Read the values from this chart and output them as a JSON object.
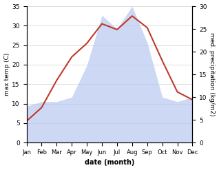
{
  "months": [
    "Jan",
    "Feb",
    "Mar",
    "Apr",
    "May",
    "Jun",
    "Jul",
    "Aug",
    "Sep",
    "Oct",
    "Nov",
    "Dec"
  ],
  "temperature": [
    5.5,
    9.0,
    16.0,
    22.0,
    25.5,
    30.5,
    29.0,
    32.5,
    29.5,
    21.0,
    13.0,
    11.0
  ],
  "precipitation": [
    8.0,
    9.0,
    9.0,
    10.0,
    17.0,
    28.0,
    25.0,
    30.0,
    22.0,
    10.0,
    9.0,
    10.0
  ],
  "temp_color": "#c0392b",
  "precip_color": "#b8c8f0",
  "ylim_temp": [
    0,
    35
  ],
  "ylim_precip": [
    0,
    30
  ],
  "yticks_temp": [
    0,
    5,
    10,
    15,
    20,
    25,
    30,
    35
  ],
  "yticks_precip": [
    0,
    5,
    10,
    15,
    20,
    25,
    30
  ],
  "xlabel": "date (month)",
  "ylabel_left": "max temp (C)",
  "ylabel_right": "med. precipitation (kg/m2)",
  "bg_color": "#ffffff",
  "grid_color": "#d0d0d0",
  "temp_linewidth": 1.5
}
